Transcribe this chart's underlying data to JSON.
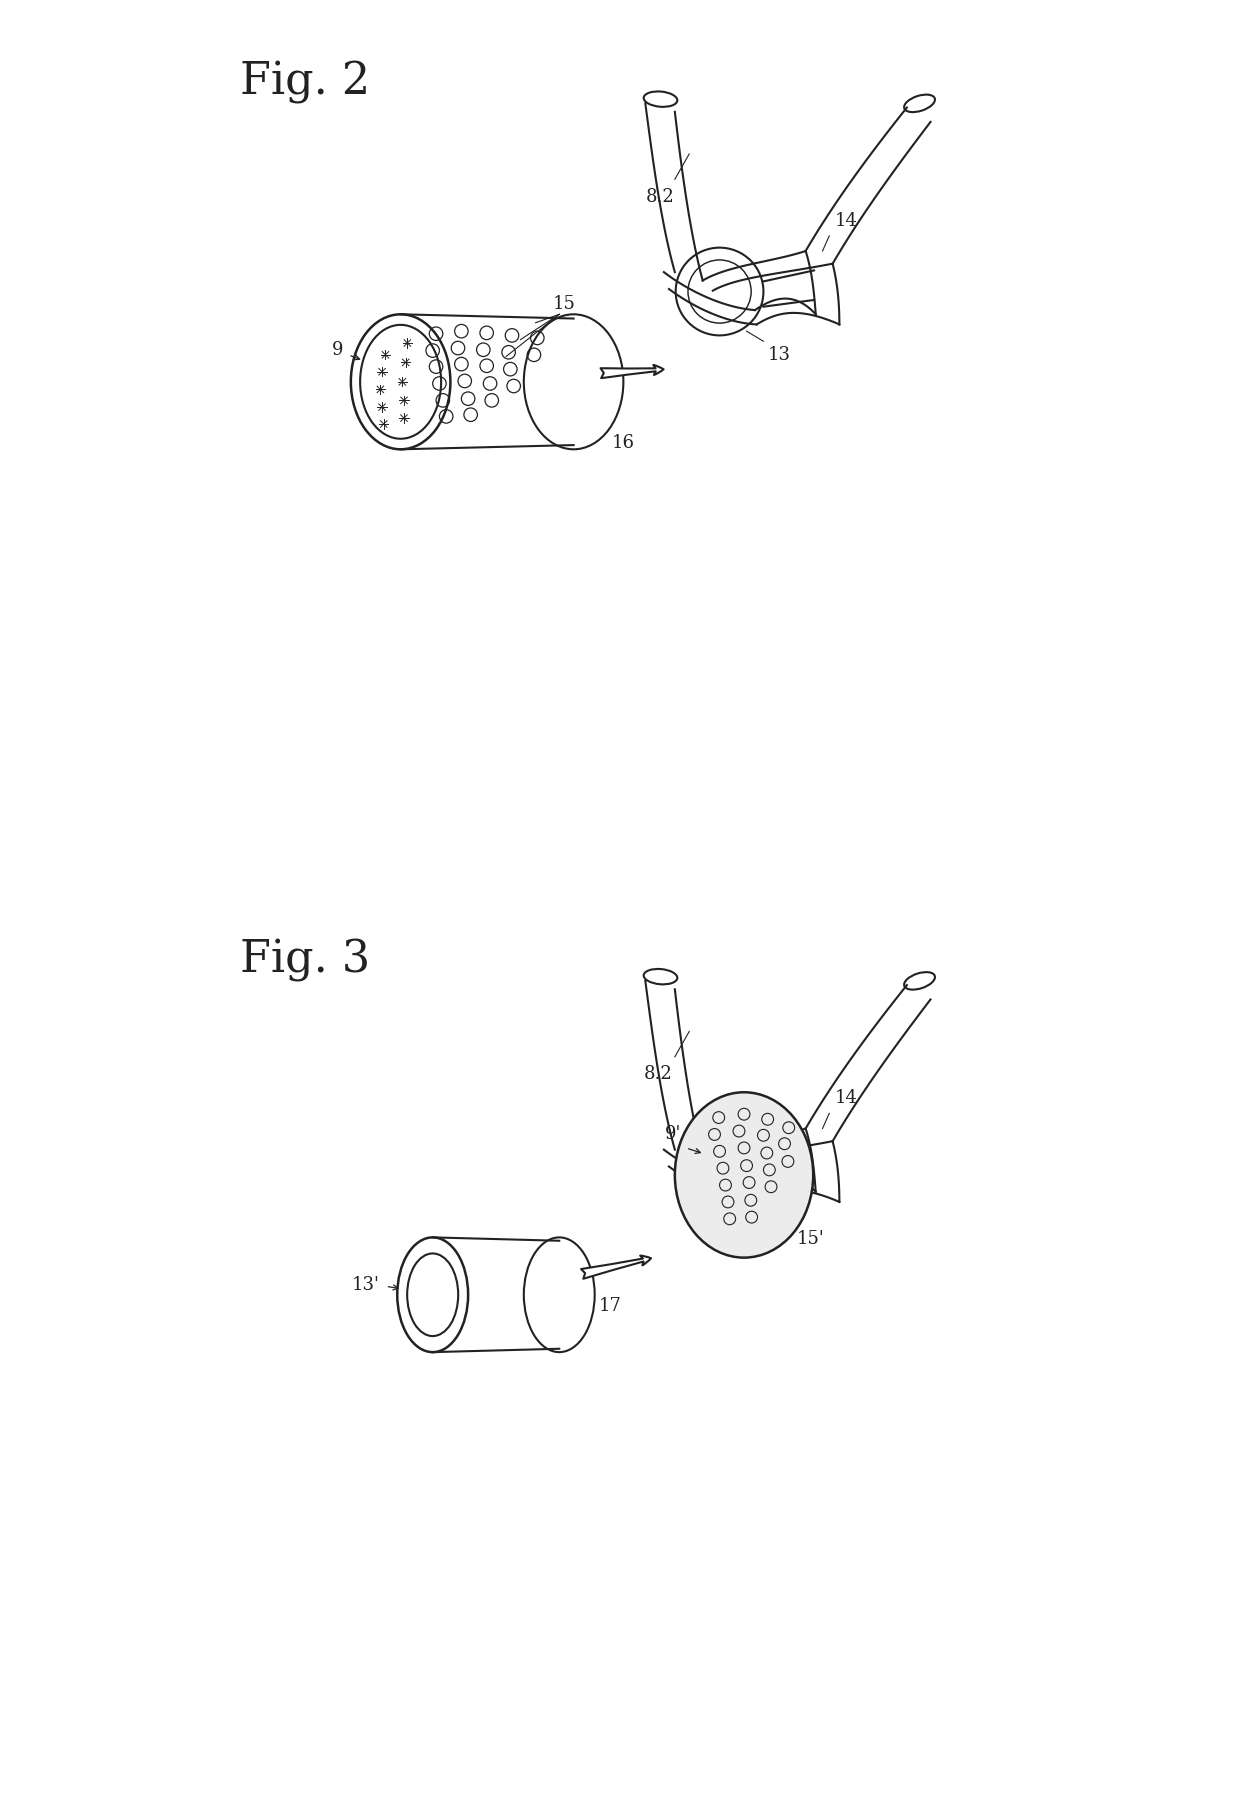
{
  "background_color": "#ffffff",
  "fig2_title": "Fig. 2",
  "fig3_title": "Fig. 3",
  "title_fontsize": 32,
  "label_fontsize": 13,
  "line_color": "#222222",
  "line_width": 1.5
}
